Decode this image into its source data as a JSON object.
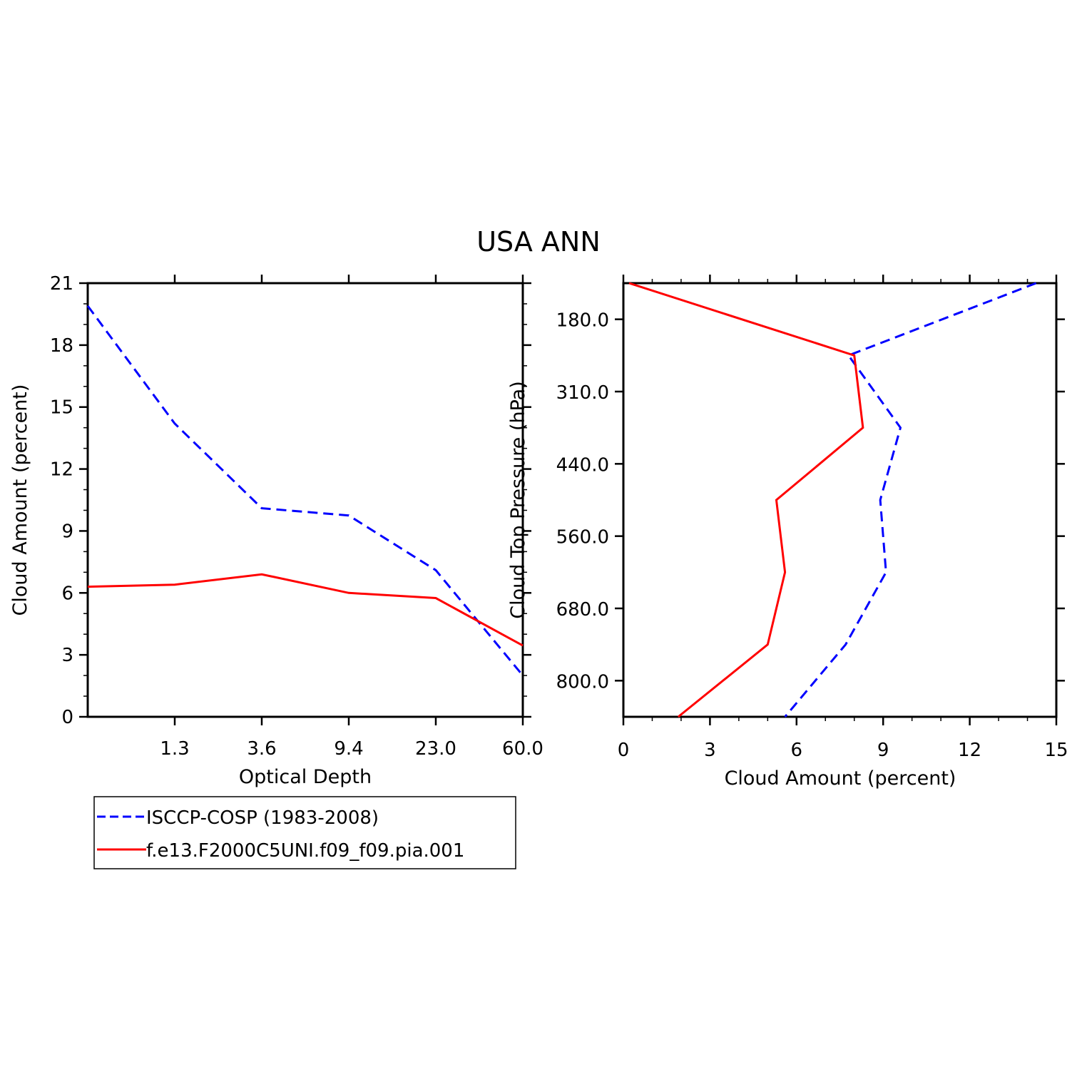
{
  "title": "USA ANN",
  "chart_data": [
    {
      "type": "line",
      "xlabel": "Optical Depth",
      "ylabel": "Cloud Amount (percent)",
      "x_tick_labels": [
        "1.3",
        "3.6",
        "9.4",
        "23.0",
        "60.0"
      ],
      "x_bin_range": [
        0,
        5
      ],
      "ylim": [
        0,
        21
      ],
      "y_ticks": [
        0,
        3,
        6,
        9,
        12,
        15,
        18,
        21
      ],
      "grid": false,
      "series": [
        {
          "name": "ISCCP-COSP (1983-2008)",
          "color": "#0000ff",
          "dash": "dashed",
          "values": [
            19.9,
            14.2,
            10.1,
            9.75,
            7.1,
            2.0
          ]
        },
        {
          "name": "f.e13.F2000C5UNI.f09_f09.pia.001",
          "color": "#ff0000",
          "dash": "solid",
          "values": [
            6.3,
            6.4,
            6.9,
            6.0,
            5.75,
            3.45
          ]
        }
      ]
    },
    {
      "type": "line",
      "orientation": "horizontal",
      "xlabel": "Cloud Amount (percent)",
      "ylabel": "Cloud Top Pressure (hPa)",
      "xlim": [
        0,
        15
      ],
      "x_ticks": [
        0,
        3,
        6,
        9,
        12,
        15
      ],
      "y_tick_labels": [
        "180.0",
        "310.0",
        "440.0",
        "560.0",
        "680.0",
        "800.0"
      ],
      "y_bin_range": [
        0,
        6
      ],
      "grid": false,
      "series": [
        {
          "name": "ISCCP-COSP (1983-2008)",
          "color": "#0000ff",
          "dash": "dashed",
          "values": [
            14.3,
            7.8,
            9.6,
            8.9,
            9.1,
            7.7,
            5.6
          ]
        },
        {
          "name": "f.e13.F2000C5UNI.f09_f09.pia.001",
          "color": "#ff0000",
          "dash": "solid",
          "values": [
            0.2,
            8.0,
            8.3,
            5.3,
            5.6,
            5.0,
            1.9
          ]
        }
      ]
    }
  ],
  "legend": {
    "placement": "below-left",
    "entries": [
      {
        "label": "ISCCP-COSP (1983-2008)",
        "color": "#0000ff",
        "dash": "dashed"
      },
      {
        "label": "f.e13.F2000C5UNI.f09_f09.pia.001",
        "color": "#ff0000",
        "dash": "solid"
      }
    ]
  }
}
